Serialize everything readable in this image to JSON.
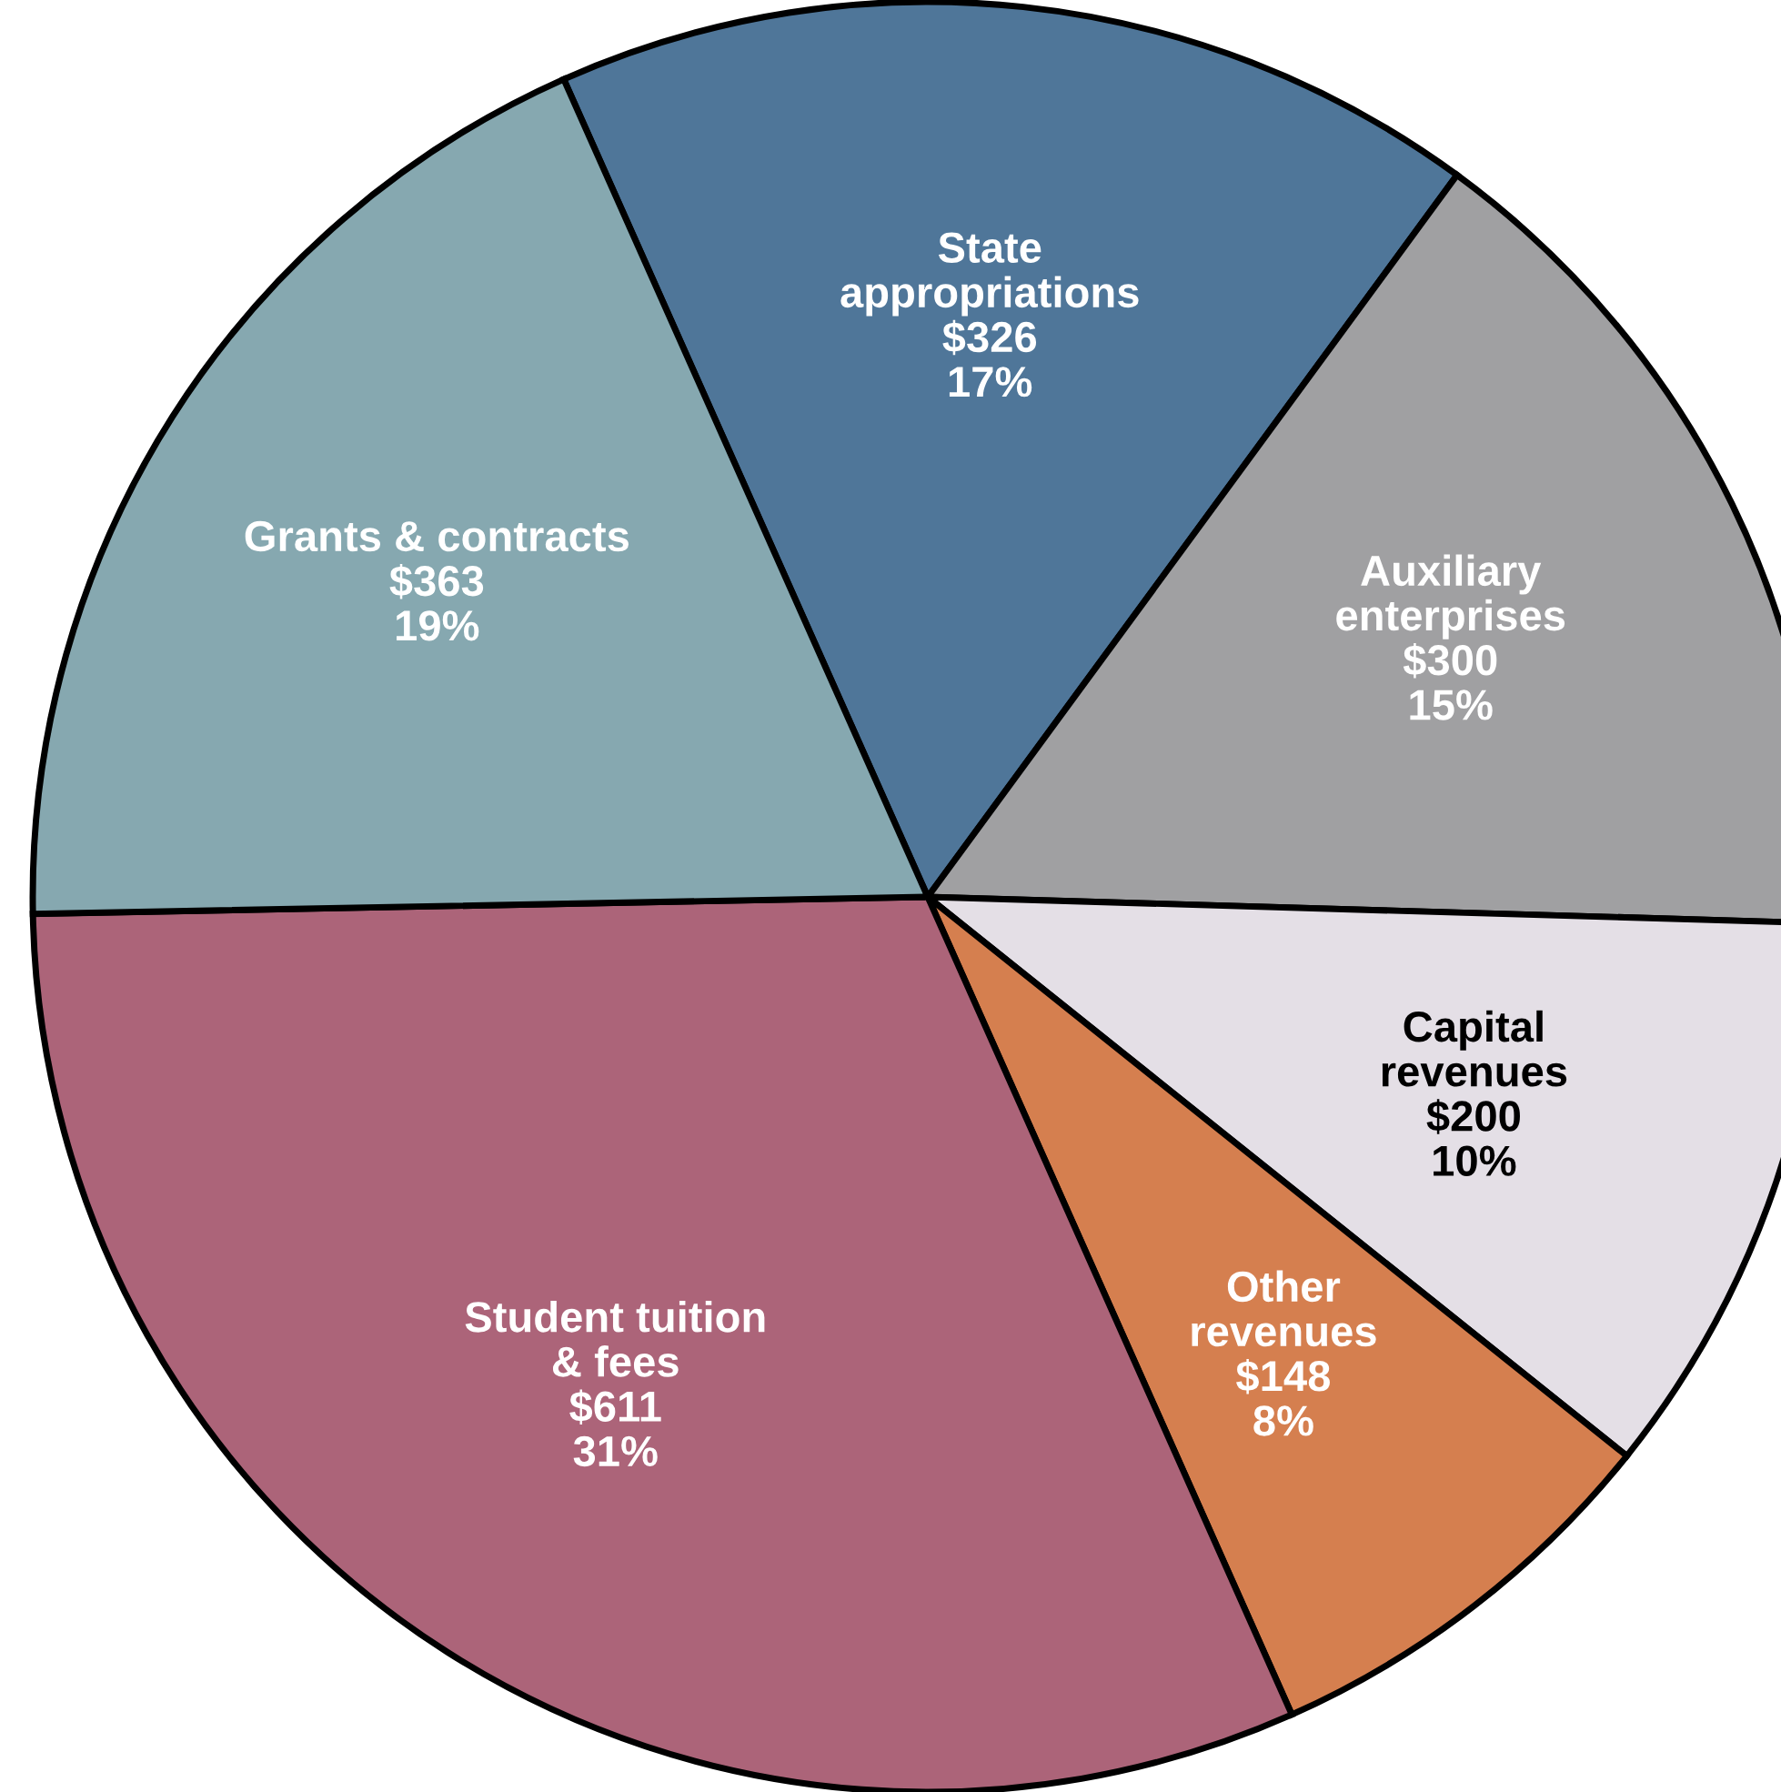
{
  "chart_data": {
    "type": "pie",
    "categories": [
      "State\nappropriations",
      "Auxiliary\nenterprises",
      "Capital\nrevenues",
      "Other\nrevenues",
      "Student tuition\n& fees",
      "Grants & contracts"
    ],
    "values": [
      326,
      300,
      200,
      148,
      611,
      363
    ],
    "colors": [
      "#4f7699",
      "#a0a0a2",
      "#e4dfe6",
      "#d57f4f",
      "#ac6479",
      "#86a8b0"
    ],
    "value_labels": [
      "$326\n17%",
      "$300\n15%",
      "$200\n10%",
      "$148\n8%",
      "$611\n31%",
      "$363\n19%"
    ],
    "legend": false
  }
}
